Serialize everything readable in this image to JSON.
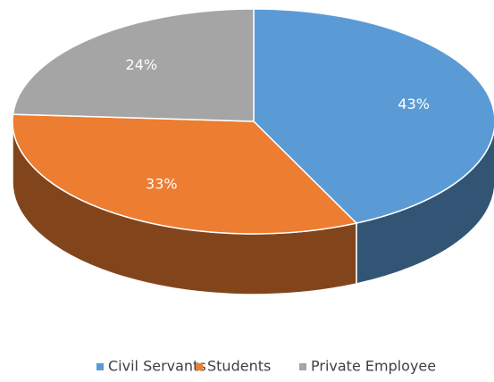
{
  "chart_data": {
    "type": "pie",
    "categories": [
      "Civil Servants",
      "Students",
      "Private Employee"
    ],
    "values": [
      43,
      33,
      24
    ],
    "value_labels": [
      "43%",
      "33%",
      "24%"
    ],
    "colors": [
      "#5b9bd5",
      "#ed7d31",
      "#a5a5a5"
    ],
    "legend": "bottom"
  }
}
